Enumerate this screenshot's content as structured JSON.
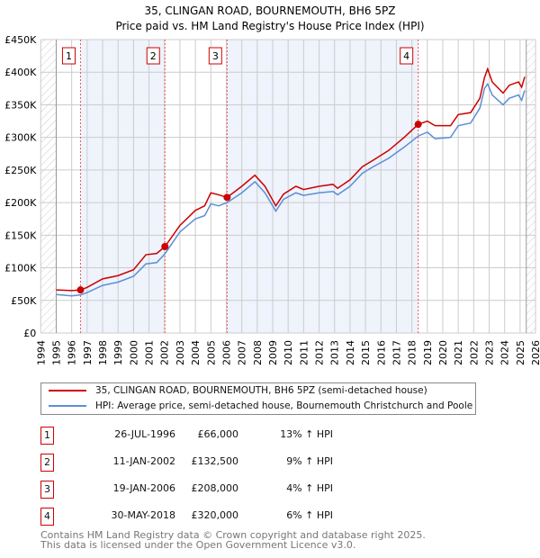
{
  "chart_data": {
    "type": "line",
    "title": "35, CLINGAN ROAD, BOURNEMOUTH, BH6 5PZ",
    "subtitle": "Price paid vs. HM Land Registry's House Price Index (HPI)",
    "xlim": [
      1994,
      2026
    ],
    "ylim": [
      0,
      450000
    ],
    "yticks": [
      0,
      50000,
      100000,
      150000,
      200000,
      250000,
      300000,
      350000,
      400000,
      450000
    ],
    "ytick_labels": [
      "£0",
      "£50K",
      "£100K",
      "£150K",
      "£200K",
      "£250K",
      "£300K",
      "£350K",
      "£400K",
      "£450K"
    ],
    "xticks": [
      1994,
      1995,
      1996,
      1997,
      1998,
      1999,
      2000,
      2001,
      2002,
      2003,
      2004,
      2005,
      2006,
      2007,
      2008,
      2009,
      2010,
      2011,
      2012,
      2013,
      2014,
      2015,
      2016,
      2017,
      2018,
      2019,
      2020,
      2021,
      2022,
      2023,
      2024,
      2025,
      2026
    ],
    "grid": true,
    "series": [
      {
        "name": "35, CLINGAN ROAD, BOURNEMOUTH, BH6 5PZ (semi-detached house)",
        "color": "#cc0000",
        "x": [
          1995,
          1996,
          1996.57,
          1997,
          1998,
          1999,
          2000,
          2000.8,
          2001.5,
          2002.03,
          2003,
          2004,
          2004.6,
          2005,
          2005.5,
          2006.05,
          2007,
          2007.85,
          2008.5,
          2009.2,
          2009.7,
          2010.5,
          2011,
          2012,
          2012.9,
          2013.2,
          2014,
          2014.8,
          2015.5,
          2016.5,
          2017.5,
          2018.41,
          2019,
          2019.5,
          2020.5,
          2021,
          2021.8,
          2022.4,
          2022.7,
          2022.9,
          2023.2,
          2023.9,
          2024.3,
          2024.9,
          2025.1,
          2025.3
        ],
        "values": [
          66000,
          65000,
          66000,
          70000,
          83000,
          88000,
          97000,
          120000,
          122000,
          132500,
          165000,
          188000,
          195000,
          215000,
          212000,
          208000,
          225000,
          242000,
          225000,
          195000,
          213000,
          225000,
          220000,
          225000,
          228000,
          222000,
          235000,
          255000,
          265000,
          280000,
          300000,
          320000,
          325000,
          318000,
          318000,
          335000,
          338000,
          360000,
          392000,
          405000,
          385000,
          368000,
          380000,
          385000,
          377000,
          393000
        ]
      },
      {
        "name": "HPI: Average price, semi-detached house, Bournemouth Christchurch and Poole",
        "color": "#5b8fd4",
        "x": [
          1995,
          1996,
          1996.57,
          1997,
          1998,
          1999,
          2000,
          2000.8,
          2001.5,
          2002.03,
          2003,
          2004,
          2004.6,
          2005,
          2005.5,
          2006.05,
          2007,
          2007.85,
          2008.5,
          2009.2,
          2009.7,
          2010.5,
          2011,
          2012,
          2012.9,
          2013.2,
          2014,
          2014.8,
          2015.5,
          2016.5,
          2017.5,
          2018.41,
          2019,
          2019.5,
          2020.5,
          2021,
          2021.8,
          2022.4,
          2022.7,
          2022.9,
          2023.2,
          2023.9,
          2024.3,
          2024.9,
          2025.1,
          2025.3
        ],
        "values": [
          59000,
          57000,
          58500,
          62000,
          73000,
          78000,
          87000,
          106000,
          108000,
          121500,
          155000,
          175000,
          180000,
          198000,
          195000,
          200000,
          215000,
          232000,
          215000,
          187000,
          205000,
          215000,
          211000,
          215000,
          217000,
          212000,
          225000,
          245000,
          255000,
          268000,
          285000,
          302000,
          308000,
          298000,
          300000,
          318000,
          322000,
          345000,
          375000,
          382000,
          365000,
          350000,
          360000,
          365000,
          357000,
          372000
        ]
      }
    ],
    "sales": [
      {
        "label": "1",
        "x": 1996.57,
        "date": "26-JUL-1996",
        "price": 66000,
        "price_text": "£66,000",
        "hpi": "13% ↑ HPI"
      },
      {
        "label": "2",
        "x": 2002.03,
        "date": "11-JAN-2002",
        "price": 132500,
        "price_text": "£132,500",
        "hpi": "9% ↑ HPI"
      },
      {
        "label": "3",
        "x": 2006.05,
        "date": "19-JAN-2006",
        "price": 208000,
        "price_text": "£208,000",
        "hpi": "4% ↑ HPI"
      },
      {
        "label": "4",
        "x": 2018.41,
        "date": "30-MAY-2018",
        "price": 320000,
        "price_text": "£320,000",
        "hpi": "6% ↑ HPI"
      }
    ],
    "hatched_before": 1995,
    "hatched_after": 2025.4
  },
  "footer": [
    "Contains HM Land Registry data © Crown copyright and database right 2025.",
    "This data is licensed under the Open Government Licence v3.0."
  ],
  "colors": {
    "red": "#cc0000",
    "blue": "#5b8fd4",
    "band": "#eef3fc"
  }
}
